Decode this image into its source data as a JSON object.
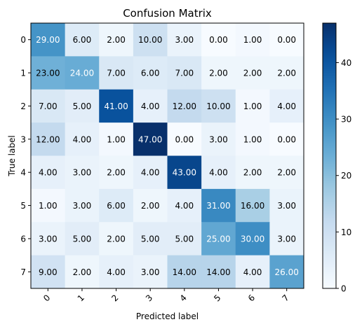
{
  "chart_data": {
    "type": "heatmap",
    "title": "Confusion Matrix",
    "xlabel": "Predicted label",
    "ylabel": "True label",
    "x_categories": [
      "0",
      "1",
      "2",
      "3",
      "4",
      "5",
      "6",
      "7"
    ],
    "y_categories": [
      "0",
      "1",
      "2",
      "3",
      "4",
      "5",
      "6",
      "7"
    ],
    "values": [
      [
        29,
        6,
        2,
        10,
        3,
        0,
        1,
        0
      ],
      [
        23,
        24,
        7,
        6,
        7,
        2,
        2,
        2
      ],
      [
        7,
        5,
        41,
        4,
        12,
        10,
        1,
        4
      ],
      [
        12,
        4,
        1,
        47,
        0,
        3,
        1,
        0
      ],
      [
        4,
        3,
        2,
        4,
        43,
        4,
        2,
        2
      ],
      [
        1,
        3,
        6,
        2,
        4,
        31,
        16,
        3
      ],
      [
        3,
        5,
        2,
        5,
        5,
        25,
        30,
        3
      ],
      [
        9,
        2,
        4,
        3,
        14,
        14,
        4,
        26
      ]
    ],
    "value_format": "0.00",
    "colormap": "Blues",
    "color_range": [
      0,
      47
    ],
    "colorbar_ticks": [
      0,
      10,
      20,
      30,
      40
    ],
    "grid": false,
    "x_tick_rotation_deg": 45,
    "cell_text_threshold": 23.5
  }
}
